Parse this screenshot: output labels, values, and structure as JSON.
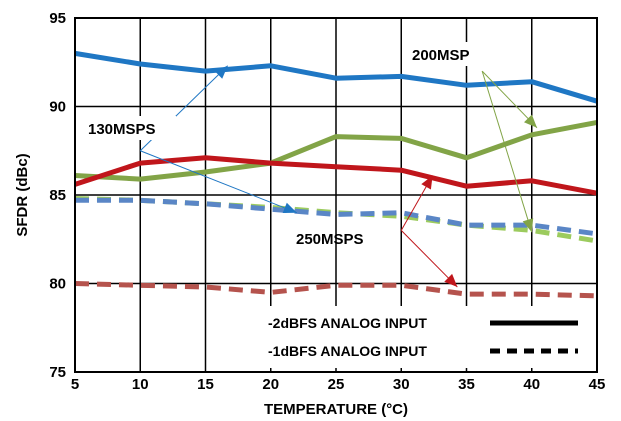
{
  "chart_data": {
    "type": "line",
    "title": "",
    "xlabel": "TEMPERATURE (°C)",
    "ylabel": "SFDR (dBc)",
    "xlim": [
      5,
      45
    ],
    "ylim": [
      75,
      95
    ],
    "x_ticks": [
      5,
      10,
      15,
      20,
      25,
      30,
      35,
      40,
      45
    ],
    "y_ticks": [
      75,
      80,
      85,
      90,
      95
    ],
    "grid": true,
    "x": [
      5,
      10,
      15,
      20,
      25,
      30,
      35,
      40,
      45
    ],
    "series": [
      {
        "group": "130MSPS",
        "style": "solid",
        "color": "#1f77c4",
        "values": [
          93.0,
          92.4,
          92.0,
          92.3,
          91.6,
          91.7,
          91.2,
          91.4,
          90.3
        ]
      },
      {
        "group": "200MSP",
        "style": "solid",
        "color": "#82a447",
        "values": [
          86.1,
          85.9,
          86.3,
          86.8,
          88.3,
          88.2,
          87.1,
          88.4,
          89.1
        ]
      },
      {
        "group": "250MSPS",
        "style": "solid",
        "color": "#c0161b",
        "values": [
          85.6,
          86.8,
          87.1,
          86.8,
          86.6,
          86.4,
          85.5,
          85.8,
          85.1
        ]
      },
      {
        "group": "200MSP",
        "style": "dashed",
        "color": "#9ccb5e",
        "values": [
          84.8,
          84.7,
          84.5,
          84.3,
          84.0,
          83.8,
          83.3,
          83.0,
          82.4
        ]
      },
      {
        "group": "130MSPS",
        "style": "dashed",
        "color": "#5a86c6",
        "values": [
          84.7,
          84.7,
          84.5,
          84.2,
          83.9,
          84.0,
          83.3,
          83.3,
          82.8
        ]
      },
      {
        "group": "250MSPS",
        "style": "dashed",
        "color": "#b5534d",
        "values": [
          80.0,
          79.9,
          79.8,
          79.5,
          79.9,
          79.9,
          79.4,
          79.4,
          79.3
        ]
      }
    ],
    "annotations": [
      {
        "text": "130MSPS",
        "color": "#1f77c4",
        "x": 9.4,
        "y": 88.4,
        "targets": [
          [
            16.7,
            92.3
          ],
          [
            22.0,
            84.0
          ]
        ],
        "arrow_from": [
          10.0,
          87.5
        ]
      },
      {
        "text": "200MSP",
        "color": "#82a447",
        "x": 29.8,
        "y": 92.6,
        "targets": [
          [
            40.4,
            88.8
          ],
          [
            40.0,
            82.9
          ]
        ],
        "arrow_from": [
          36.2,
          92.0
        ]
      },
      {
        "text": "250MSPS",
        "color": "#c0161b",
        "x": 30.0,
        "y": 81.9,
        "targets": [
          [
            32.4,
            86.1
          ],
          [
            34.3,
            79.8
          ]
        ],
        "arrow_from": [
          30.0,
          83.0
        ]
      }
    ],
    "legend": {
      "position": "bottom-right",
      "items": [
        {
          "label": "-2dBFS ANALOG INPUT",
          "style": "solid"
        },
        {
          "label": "-1dBFS ANALOG INPUT",
          "style": "dashed"
        }
      ]
    }
  }
}
